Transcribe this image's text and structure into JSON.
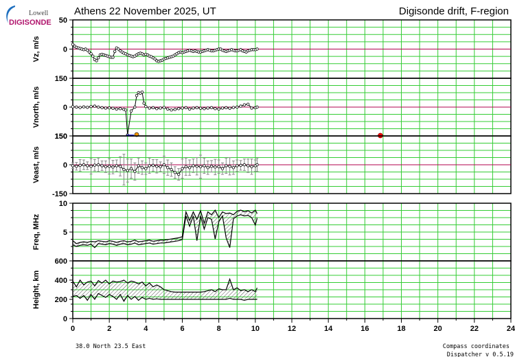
{
  "logo": {
    "top": "Lowell",
    "bottom": "DIGISONDE"
  },
  "header": {
    "title_left": "Athens  22 November 2025, UT",
    "title_right": "Digisonde drift, F-region"
  },
  "footer": {
    "location": "38.0 North   23.5 East",
    "note1": "Compass coordinates",
    "note2": "Dispatcher v 0.5.19"
  },
  "colors": {
    "grid": "#33cc33",
    "zero_line": "#b0004c",
    "marker_fill": "#ffffff",
    "blue_segment": "#0000cc",
    "orange_marker": "#ff9900",
    "red_marker": "#ee0000",
    "hatch": "#555555"
  },
  "chart_data": {
    "type": "line",
    "x_label_ticks": [
      "0",
      "2",
      "4",
      "6",
      "8",
      "10",
      "12",
      "14",
      "16",
      "18",
      "20",
      "22",
      "24"
    ],
    "xlim": [
      0,
      24
    ],
    "grid": true,
    "panels": [
      {
        "id": "vz",
        "ylabel": "Vz, m/s",
        "ylim": [
          -50,
          50
        ],
        "tick_labels": [
          "50",
          "0"
        ],
        "series": [
          {
            "x": [
              0.0,
              0.1,
              0.2,
              0.3,
              0.4,
              0.5,
              0.6,
              0.7,
              0.8,
              0.9,
              1.0,
              1.1,
              1.2,
              1.3,
              1.4,
              1.5,
              1.6,
              1.7,
              1.8,
              1.9,
              2.0,
              2.1,
              2.2,
              2.3,
              2.4,
              2.5,
              2.6,
              2.7,
              2.8,
              2.9,
              3.0,
              3.1,
              3.2,
              3.3,
              3.4,
              3.5,
              3.6,
              3.7,
              3.8,
              3.9,
              4.0,
              4.1,
              4.2,
              4.3,
              4.4,
              4.5,
              4.6,
              4.7,
              4.8,
              4.9,
              5.0,
              5.1,
              5.2,
              5.3,
              5.4,
              5.5,
              5.6,
              5.7,
              5.8,
              5.9,
              6.0,
              6.1,
              6.2,
              6.3,
              6.4,
              6.5,
              6.6,
              6.7,
              6.8,
              6.9,
              7.0,
              7.1,
              7.2,
              7.3,
              7.4,
              7.5,
              7.6,
              7.7,
              7.8,
              7.9,
              8.0,
              8.1,
              8.2,
              8.3,
              8.4,
              8.5,
              8.6,
              8.7,
              8.8,
              8.9,
              9.0,
              9.1,
              9.2,
              9.3,
              9.4,
              9.5,
              9.6,
              9.7,
              9.8,
              9.9,
              10.0,
              10.1
            ],
            "values": [
              8,
              5,
              3,
              2,
              1,
              0,
              -1,
              0,
              -2,
              -5,
              -8,
              -12,
              -18,
              -20,
              -15,
              -10,
              -9,
              -10,
              -11,
              -12,
              -13,
              -14,
              -14,
              -4,
              2,
              0,
              -3,
              -5,
              -7,
              -8,
              -10,
              -11,
              -12,
              -13,
              -12,
              -10,
              -8,
              -7,
              -8,
              -10,
              -9,
              -10,
              -12,
              -13,
              -15,
              -17,
              -20,
              -21,
              -20,
              -19,
              -17,
              -16,
              -15,
              -14,
              -13,
              -12,
              -10,
              -8,
              -6,
              -5,
              -6,
              -5,
              -4,
              -3,
              -2,
              -3,
              -4,
              -3,
              -4,
              -5,
              -5,
              -4,
              -3,
              -2,
              -1,
              -2,
              -3,
              -3,
              -2,
              -1,
              0,
              0,
              -2,
              -3,
              -4,
              -3,
              -2,
              -1,
              -2,
              -3,
              -3,
              -2,
              -1,
              -3,
              -4,
              -5,
              -3,
              -2,
              -1,
              -1,
              -1,
              0
            ]
          }
        ]
      },
      {
        "id": "vnorth",
        "ylabel": "Vnorth, m/s",
        "ylim": [
          -150,
          150
        ],
        "tick_labels": [
          "150",
          "0",
          "150"
        ],
        "series": [
          {
            "x": [
              0.0,
              0.2,
              0.4,
              0.6,
              0.8,
              1.0,
              1.2,
              1.4,
              1.6,
              1.8,
              2.0,
              2.2,
              2.4,
              2.6,
              2.8,
              2.9,
              3.0,
              3.2,
              3.4,
              3.5,
              3.6,
              3.7,
              3.8,
              3.9,
              4.0,
              4.2,
              4.4,
              4.6,
              4.8,
              5.0,
              5.2,
              5.4,
              5.6,
              5.8,
              6.0,
              6.2,
              6.4,
              6.6,
              6.8,
              7.0,
              7.2,
              7.4,
              7.6,
              7.8,
              8.0,
              8.2,
              8.4,
              8.6,
              8.8,
              9.0,
              9.2,
              9.4,
              9.6,
              9.8,
              10.0,
              10.1
            ],
            "values": [
              2,
              0,
              -2,
              1,
              -1,
              3,
              5,
              0,
              -3,
              -5,
              -4,
              -6,
              -10,
              -8,
              -12,
              -15,
              -145,
              -20,
              0,
              60,
              75,
              72,
              78,
              20,
              3,
              -5,
              -3,
              -8,
              -5,
              -2,
              -10,
              -15,
              -12,
              -8,
              -5,
              -3,
              -10,
              -5,
              -3,
              -6,
              -8,
              -5,
              -3,
              -8,
              -10,
              -5,
              -3,
              -6,
              -2,
              0,
              5,
              12,
              15,
              -5,
              -3,
              0
            ]
          }
        ],
        "markers": [
          {
            "name": "blue-segment",
            "x_start": 2.95,
            "x_end": 3.35,
            "value": -148
          },
          {
            "name": "orange-marker",
            "x": 3.5,
            "value": -143
          },
          {
            "name": "red-marker",
            "x": 16.85,
            "value": -148
          }
        ]
      },
      {
        "id": "veast",
        "ylabel": "Veast, m/s",
        "ylim": [
          -150,
          150
        ],
        "tick_labels": [
          "150",
          "0",
          "-150"
        ],
        "series": [
          {
            "x": [
              0.0,
              0.2,
              0.4,
              0.6,
              0.8,
              1.0,
              1.2,
              1.4,
              1.6,
              1.8,
              2.0,
              2.2,
              2.4,
              2.6,
              2.8,
              3.0,
              3.2,
              3.4,
              3.6,
              3.8,
              4.0,
              4.2,
              4.4,
              4.6,
              4.8,
              5.0,
              5.2,
              5.4,
              5.6,
              5.8,
              6.0,
              6.2,
              6.4,
              6.6,
              6.8,
              7.0,
              7.2,
              7.4,
              7.6,
              7.8,
              8.0,
              8.2,
              8.4,
              8.6,
              8.8,
              9.0,
              9.2,
              9.4,
              9.6,
              9.8,
              10.0,
              10.1
            ],
            "values": [
              -5,
              -8,
              -3,
              0,
              -5,
              -8,
              -2,
              0,
              -5,
              -10,
              -8,
              -12,
              -5,
              -8,
              -25,
              -30,
              -20,
              -35,
              -5,
              -15,
              -20,
              -5,
              -3,
              -8,
              -10,
              0,
              -15,
              -25,
              -40,
              -50,
              -20,
              -10,
              -15,
              -5,
              -8,
              -10,
              -5,
              -15,
              -8,
              -12,
              -10,
              -20,
              -5,
              -8,
              -15,
              -5,
              -3,
              0,
              -5,
              -10,
              -5,
              0
            ],
            "errors": [
              15,
              20,
              30,
              25,
              20,
              40,
              30,
              35,
              25,
              30,
              40,
              35,
              30,
              50,
              80,
              60,
              50,
              45,
              40,
              35,
              30,
              40,
              30,
              35,
              25,
              45,
              40,
              35,
              30,
              30,
              50,
              45,
              40,
              35,
              45,
              60,
              40,
              35,
              30,
              40,
              35,
              30,
              40,
              45,
              35,
              30,
              25,
              30,
              35,
              40,
              30,
              35
            ]
          }
        ]
      },
      {
        "id": "freq",
        "ylabel": "Freq, MHz",
        "ylim": [
          0,
          10
        ],
        "tick_labels": [
          "10",
          "5"
        ],
        "series": [
          {
            "name": "upper",
            "x": [
              0.0,
              0.2,
              0.4,
              0.6,
              0.8,
              1.0,
              1.2,
              1.4,
              1.6,
              1.8,
              2.0,
              2.2,
              2.4,
              2.6,
              2.8,
              3.0,
              3.2,
              3.4,
              3.6,
              3.8,
              4.0,
              4.2,
              4.4,
              4.6,
              4.8,
              5.0,
              5.2,
              5.4,
              5.6,
              5.8,
              6.0,
              6.2,
              6.4,
              6.6,
              6.8,
              7.0,
              7.2,
              7.4,
              7.6,
              7.8,
              8.0,
              8.2,
              8.4,
              8.6,
              8.8,
              9.0,
              9.2,
              9.4,
              9.6,
              9.8,
              10.0,
              10.1
            ],
            "values": [
              3.5,
              3.0,
              3.2,
              3.3,
              3.2,
              3.4,
              3.3,
              3.5,
              3.4,
              3.3,
              3.5,
              3.4,
              3.2,
              3.4,
              3.5,
              3.3,
              3.4,
              3.6,
              3.3,
              3.4,
              3.5,
              3.6,
              3.4,
              3.5,
              3.6,
              3.6,
              3.7,
              3.8,
              3.9,
              4.0,
              4.2,
              8.5,
              7.0,
              8.5,
              7.2,
              8.7,
              6.5,
              8.5,
              8.0,
              8.8,
              7.5,
              8.5,
              8.2,
              8.3,
              8.0,
              8.6,
              8.8,
              8.5,
              8.7,
              8.3,
              8.8,
              8.2
            ]
          },
          {
            "name": "lower",
            "x": [
              0.0,
              0.2,
              0.4,
              0.6,
              0.8,
              1.0,
              1.2,
              1.4,
              1.6,
              1.8,
              2.0,
              2.2,
              2.4,
              2.6,
              2.8,
              3.0,
              3.2,
              3.4,
              3.6,
              3.8,
              4.0,
              4.2,
              4.4,
              4.6,
              4.8,
              5.0,
              5.2,
              5.4,
              5.6,
              5.8,
              6.0,
              6.2,
              6.4,
              6.6,
              6.8,
              7.0,
              7.2,
              7.4,
              7.6,
              7.8,
              8.0,
              8.2,
              8.4,
              8.6,
              8.8,
              9.0,
              9.2,
              9.4,
              9.6,
              9.8,
              10.0,
              10.1
            ],
            "values": [
              2.8,
              2.5,
              2.7,
              2.8,
              2.7,
              2.9,
              2.3,
              3.0,
              2.9,
              2.8,
              3.0,
              2.9,
              2.7,
              2.9,
              3.0,
              2.8,
              2.9,
              3.1,
              2.8,
              2.9,
              3.0,
              3.1,
              2.9,
              3.0,
              3.1,
              3.1,
              3.2,
              3.3,
              3.4,
              3.5,
              3.7,
              7.8,
              6.0,
              7.8,
              3.5,
              7.8,
              5.5,
              7.5,
              7.2,
              3.8,
              6.8,
              7.8,
              4.0,
              2.3,
              7.3,
              7.8,
              8.0,
              7.8,
              7.9,
              7.5,
              6.2,
              7.4
            ]
          }
        ]
      },
      {
        "id": "height",
        "ylabel": "Height, km",
        "ylim": [
          0,
          600
        ],
        "tick_labels": [
          "600",
          "400",
          "200",
          "0"
        ],
        "series": [
          {
            "name": "upper",
            "x": [
              0.0,
              0.2,
              0.4,
              0.6,
              0.8,
              1.0,
              1.2,
              1.4,
              1.6,
              1.8,
              2.0,
              2.2,
              2.4,
              2.6,
              2.8,
              3.0,
              3.2,
              3.4,
              3.6,
              3.8,
              4.0,
              4.2,
              4.4,
              4.6,
              4.8,
              5.0,
              5.2,
              5.4,
              5.6,
              5.8,
              6.0,
              6.2,
              6.4,
              6.6,
              6.8,
              7.0,
              7.2,
              7.4,
              7.6,
              7.8,
              8.0,
              8.2,
              8.4,
              8.6,
              8.8,
              9.0,
              9.2,
              9.4,
              9.6,
              9.8,
              10.0,
              10.1
            ],
            "values": [
              390,
              330,
              400,
              350,
              380,
              390,
              340,
              395,
              370,
              400,
              360,
              390,
              380,
              385,
              400,
              370,
              390,
              380,
              360,
              380,
              340,
              370,
              330,
              350,
              330,
              300,
              290,
              280,
              275,
              275,
              275,
              275,
              275,
              275,
              275,
              275,
              280,
              290,
              300,
              280,
              310,
              300,
              300,
              410,
              300,
              320,
              290,
              300,
              280,
              300,
              280,
              320
            ]
          },
          {
            "name": "lower",
            "x": [
              0.0,
              0.2,
              0.4,
              0.6,
              0.8,
              1.0,
              1.2,
              1.4,
              1.6,
              1.8,
              2.0,
              2.2,
              2.4,
              2.6,
              2.8,
              3.0,
              3.2,
              3.4,
              3.6,
              3.8,
              4.0,
              4.2,
              4.4,
              4.6,
              4.8,
              5.0,
              5.2,
              5.4,
              5.6,
              5.8,
              6.0,
              6.2,
              6.4,
              6.6,
              6.8,
              7.0,
              7.2,
              7.4,
              7.6,
              7.8,
              8.0,
              8.2,
              8.4,
              8.6,
              8.8,
              9.0,
              9.2,
              9.4,
              9.6,
              9.8,
              10.0,
              10.1
            ],
            "values": [
              230,
              240,
              210,
              240,
              190,
              250,
              200,
              260,
              240,
              220,
              250,
              230,
              200,
              250,
              180,
              240,
              200,
              230,
              190,
              220,
              200,
              210,
              200,
              205,
              200,
              200,
              200,
              200,
              200,
              200,
              200,
              200,
              200,
              200,
              200,
              200,
              200,
              200,
              200,
              200,
              200,
              200,
              200,
              210,
              200,
              200,
              200,
              190,
              200,
              200,
              200,
              200
            ]
          }
        ]
      }
    ]
  }
}
